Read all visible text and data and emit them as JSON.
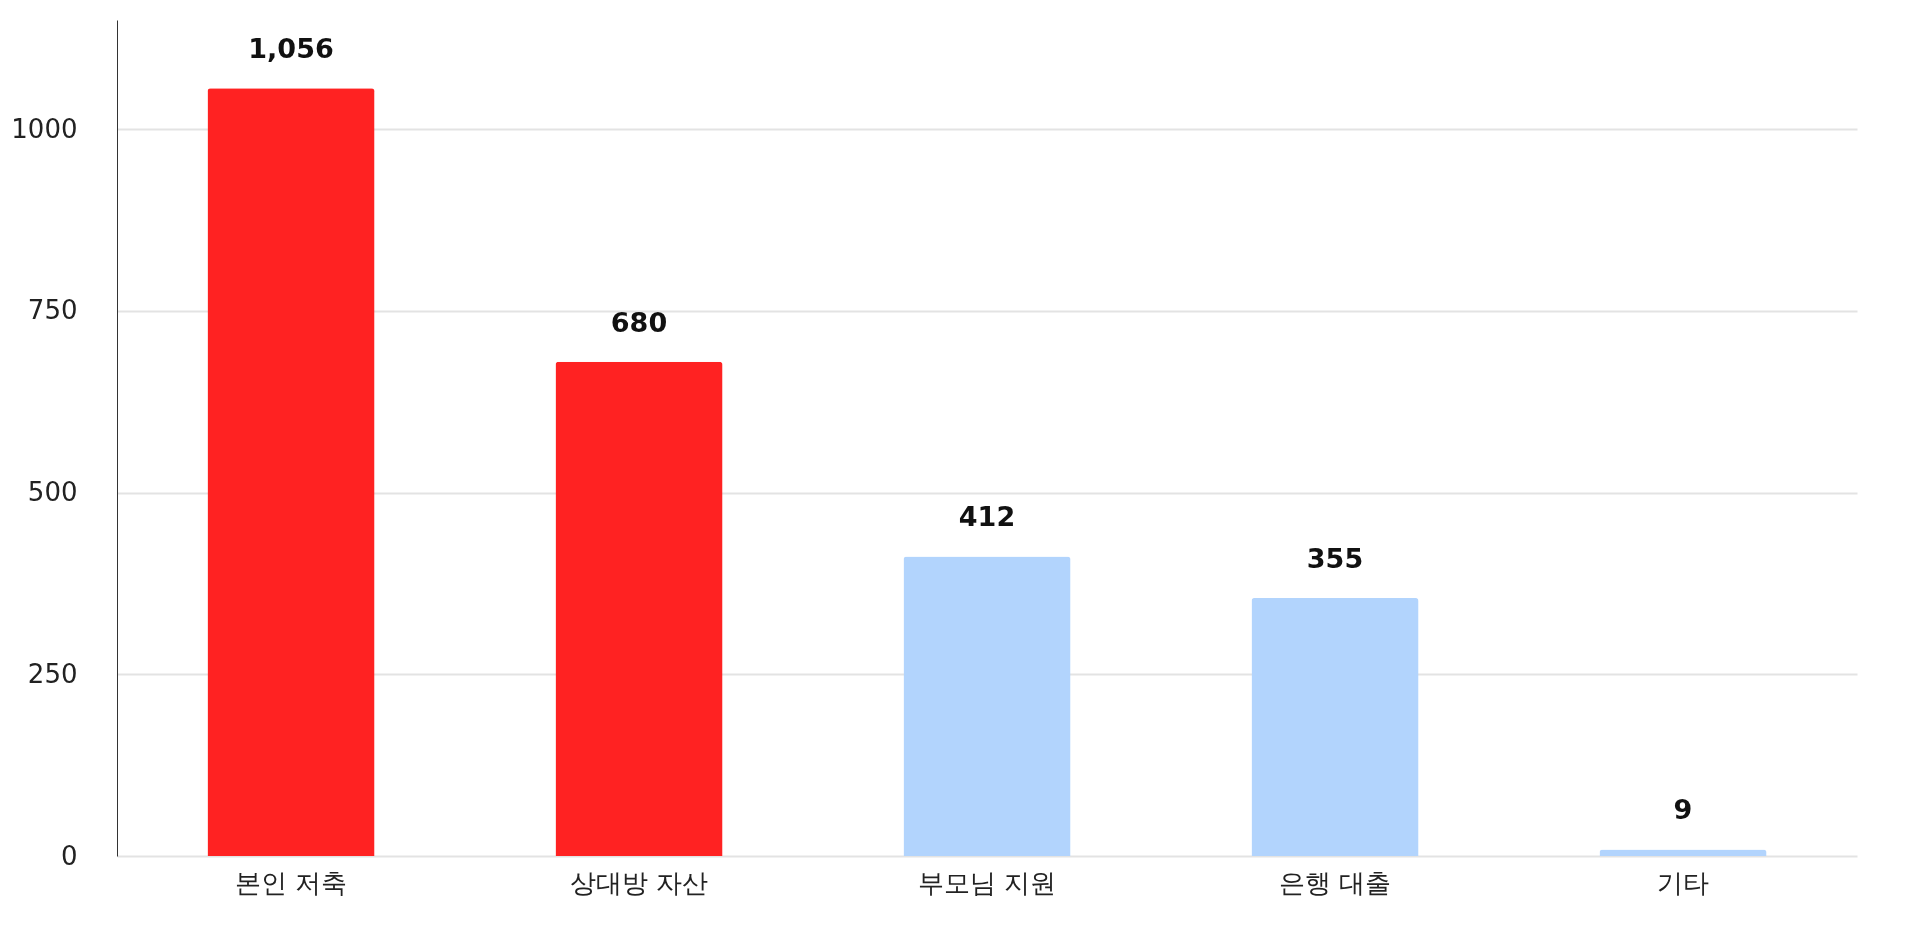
{
  "chart_data": {
    "type": "bar",
    "categories": [
      "본인 저축",
      "상대방 자산",
      "부모님 지원",
      "은행 대출",
      "기타"
    ],
    "values": [
      1056,
      680,
      412,
      355,
      9
    ],
    "colors": [
      "#ff2222",
      "#ff2222",
      "#b2d4fd",
      "#b2d4fd",
      "#b2d4fd"
    ],
    "value_labels": [
      "1,056",
      "680",
      "412",
      "355",
      "9"
    ],
    "ylim": [
      0,
      1150
    ],
    "yticks": [
      0,
      250,
      500,
      750,
      1000
    ],
    "grid": "y"
  }
}
